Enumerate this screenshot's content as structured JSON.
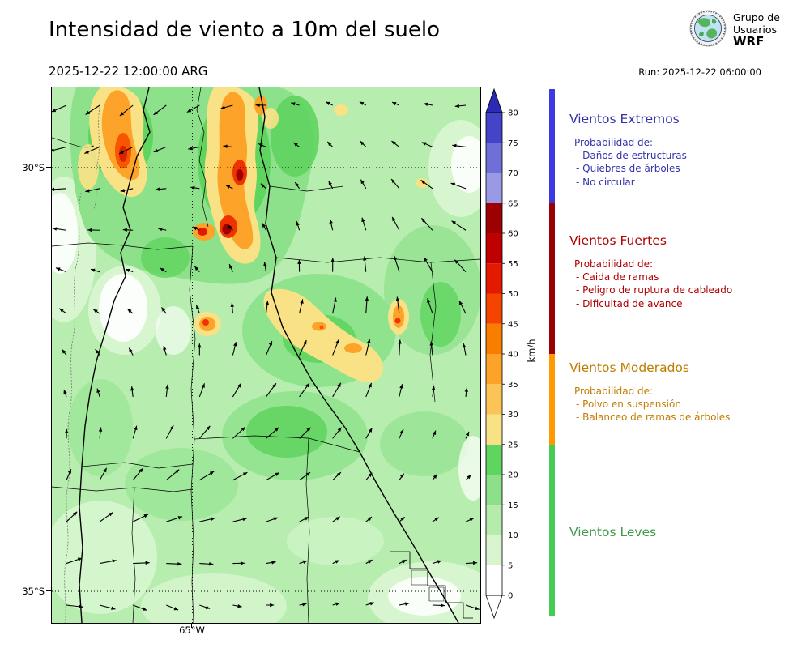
{
  "header": {
    "title": "Intensidad de viento a 10m del suelo",
    "valid_time": "2025-12-22 12:00:00 ARG",
    "run_label": "Run: 2025-12-22 06:00:00",
    "logo_text": {
      "line1": "Grupo de",
      "line2": "Usuarios",
      "line3": "WRF"
    }
  },
  "legend": {
    "categories": [
      {
        "title": "Vientos Extremos",
        "color": "#3434ad",
        "strip_color": "#3a3ae0",
        "subtitle": "Probabilidad de:",
        "items": [
          "- Daños de estructuras",
          "- Quiebres de árboles",
          "- No circular"
        ]
      },
      {
        "title": "Vientos Fuertes",
        "color": "#b00000",
        "strip_color": "#990000",
        "subtitle": "Probabilidad de:",
        "items": [
          "- Caida de ramas",
          "- Peligro de ruptura de cableado",
          "- Dificultad de avance"
        ]
      },
      {
        "title": "Vientos Moderados",
        "color": "#c07c00",
        "strip_color": "#ff9900",
        "subtitle": "Probabilidad de:",
        "items": [
          "- Polvo en suspensión",
          "- Balanceo de ramas de árboles"
        ]
      },
      {
        "title": "Vientos Leves",
        "color": "#3f9a4a",
        "strip_color": "#44cc55",
        "subtitle": "",
        "items": []
      }
    ]
  },
  "chart_data": {
    "type": "heatmap",
    "title": "Intensidad de viento a 10m del suelo",
    "valid_time": "2025-12-22 12:00:00 ARG",
    "model_run": "Run: 2025-12-22 06:00:00",
    "unit": "km/h",
    "y_axis": {
      "tick_labels": [
        "30°S",
        "35°S"
      ]
    },
    "x_axis": {
      "tick_labels": [
        "65°W"
      ]
    },
    "colorbar": {
      "unit": "km/h",
      "levels": [
        0,
        5,
        10,
        15,
        20,
        25,
        30,
        35,
        40,
        45,
        50,
        55,
        60,
        65,
        70,
        75,
        80
      ],
      "extend": "both",
      "colors": [
        "#ffffff",
        "#d8f5d0",
        "#b5ecab",
        "#8de089",
        "#5fd45f",
        "#f9e286",
        "#fcc457",
        "#fda32a",
        "#f97e00",
        "#f44400",
        "#e31a00",
        "#c00000",
        "#9c0000",
        "#9999e6",
        "#6f6fd8",
        "#4444c8"
      ],
      "over_color": "#2a2ab4",
      "under_color": "#ffffff"
    },
    "wind_vectors": {
      "style": "quiver",
      "grid_cols": 13,
      "grid_rows": 13
    },
    "categories": [
      {
        "name": "Vientos Leves",
        "range_kmh": [
          0,
          25
        ]
      },
      {
        "name": "Vientos Moderados",
        "range_kmh": [
          25,
          40
        ]
      },
      {
        "name": "Vientos Fuertes",
        "range_kmh": [
          40,
          65
        ]
      },
      {
        "name": "Vientos Extremos",
        "range_kmh": [
          65,
          80
        ]
      }
    ]
  }
}
